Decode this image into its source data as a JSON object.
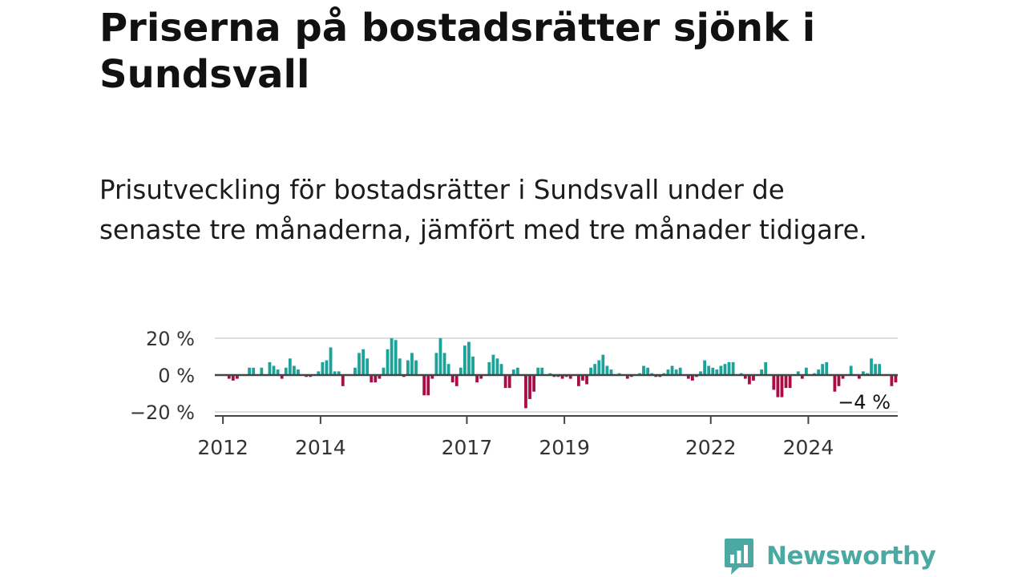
{
  "header": {
    "title": "Priserna på bostadsrätter sjönk i Sundsvall",
    "subtitle": "Prisutveckling för bostadsrätter i Sundsvall under de senaste tre månaderna, jämfört med tre månader tidigare."
  },
  "logo": {
    "text": "Newsworthy",
    "icon": "bar-chart-logo-icon"
  },
  "colors": {
    "positive": "#1ba39a",
    "negative": "#a80d45",
    "axis": "#444444",
    "grid": "#dddddd"
  },
  "chart_data": {
    "type": "bar",
    "y_unit": "%",
    "ylim": [
      -22,
      24
    ],
    "yticks": [
      20,
      0,
      -20
    ],
    "ytick_labels": [
      "20 %",
      "0 %",
      "−20 %"
    ],
    "xlim": [
      "2011-11",
      "2025-11"
    ],
    "xticks": [
      "2012-01",
      "2014-01",
      "2017-01",
      "2019-01",
      "2022-01",
      "2024-01"
    ],
    "xtick_labels": [
      "2012",
      "2014",
      "2017",
      "2019",
      "2022",
      "2024"
    ],
    "grid": true,
    "end_label": "−4 %",
    "start": "2012-01",
    "values": [
      0,
      -2,
      -3,
      -2,
      0,
      0,
      4,
      4,
      0,
      4,
      0,
      7,
      5,
      3,
      -2,
      4,
      9,
      5,
      3,
      0,
      -1,
      -1,
      0,
      2,
      7,
      8,
      15,
      2,
      2,
      -6,
      0,
      0,
      4,
      12,
      14,
      9,
      -4,
      -4,
      -2,
      4,
      14,
      20,
      19,
      9,
      -1,
      8,
      12,
      8,
      0,
      -11,
      -11,
      -2,
      12,
      20,
      12,
      6,
      -4,
      -6,
      4,
      16,
      18,
      10,
      -4,
      -2,
      0,
      7,
      11,
      9,
      6,
      -7,
      -7,
      3,
      4,
      0,
      -18,
      -13,
      -9,
      4,
      4,
      0,
      1,
      -1,
      -1,
      -2,
      -1,
      -2,
      0,
      -6,
      -3,
      -5,
      4,
      6,
      8,
      11,
      5,
      3,
      0,
      1,
      0,
      -2,
      -1,
      0,
      1,
      5,
      4,
      1,
      -1,
      -1,
      1,
      3,
      5,
      3,
      4,
      0,
      -2,
      -3,
      -1,
      2,
      8,
      5,
      4,
      3,
      5,
      6,
      7,
      7,
      0,
      1,
      -2,
      -5,
      -3,
      0,
      3,
      7,
      0,
      -8,
      -12,
      -12,
      -7,
      -7,
      0,
      2,
      -2,
      4,
      0,
      1,
      3,
      6,
      7,
      0,
      -9,
      -6,
      -2,
      0,
      5,
      0,
      -2,
      2,
      1,
      9,
      6,
      6,
      0,
      0,
      -6,
      -4
    ]
  }
}
